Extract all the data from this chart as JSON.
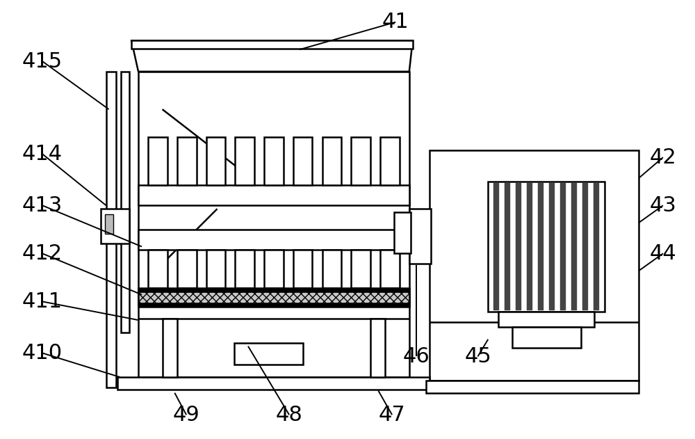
{
  "bg_color": "#ffffff",
  "lw": 1.8,
  "label_fs": 22,
  "ann_lw": 1.4
}
